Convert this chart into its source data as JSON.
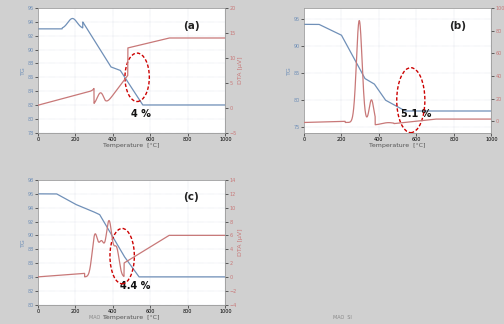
{
  "background_color": "#d8d8d8",
  "panel_bg": "#ffffff",
  "title_a": "(a)",
  "title_b": "(b)",
  "title_c": "(c)",
  "label_a": "4 %",
  "label_b": "5.1 %",
  "label_c": "4.4 %",
  "tg_color": "#7090b8",
  "dta_color": "#c87878",
  "circle_color": "#cc0000",
  "xlabel": "Temperature  [°C]",
  "ylabel_left": "TG",
  "ylabel_right": "DTA [μV]",
  "grid_color": "#b0b8cc",
  "font_size_label": 4.5,
  "font_size_title": 7.5,
  "font_size_percent": 7,
  "tick_label_size": 3.5,
  "line_width": 0.9
}
